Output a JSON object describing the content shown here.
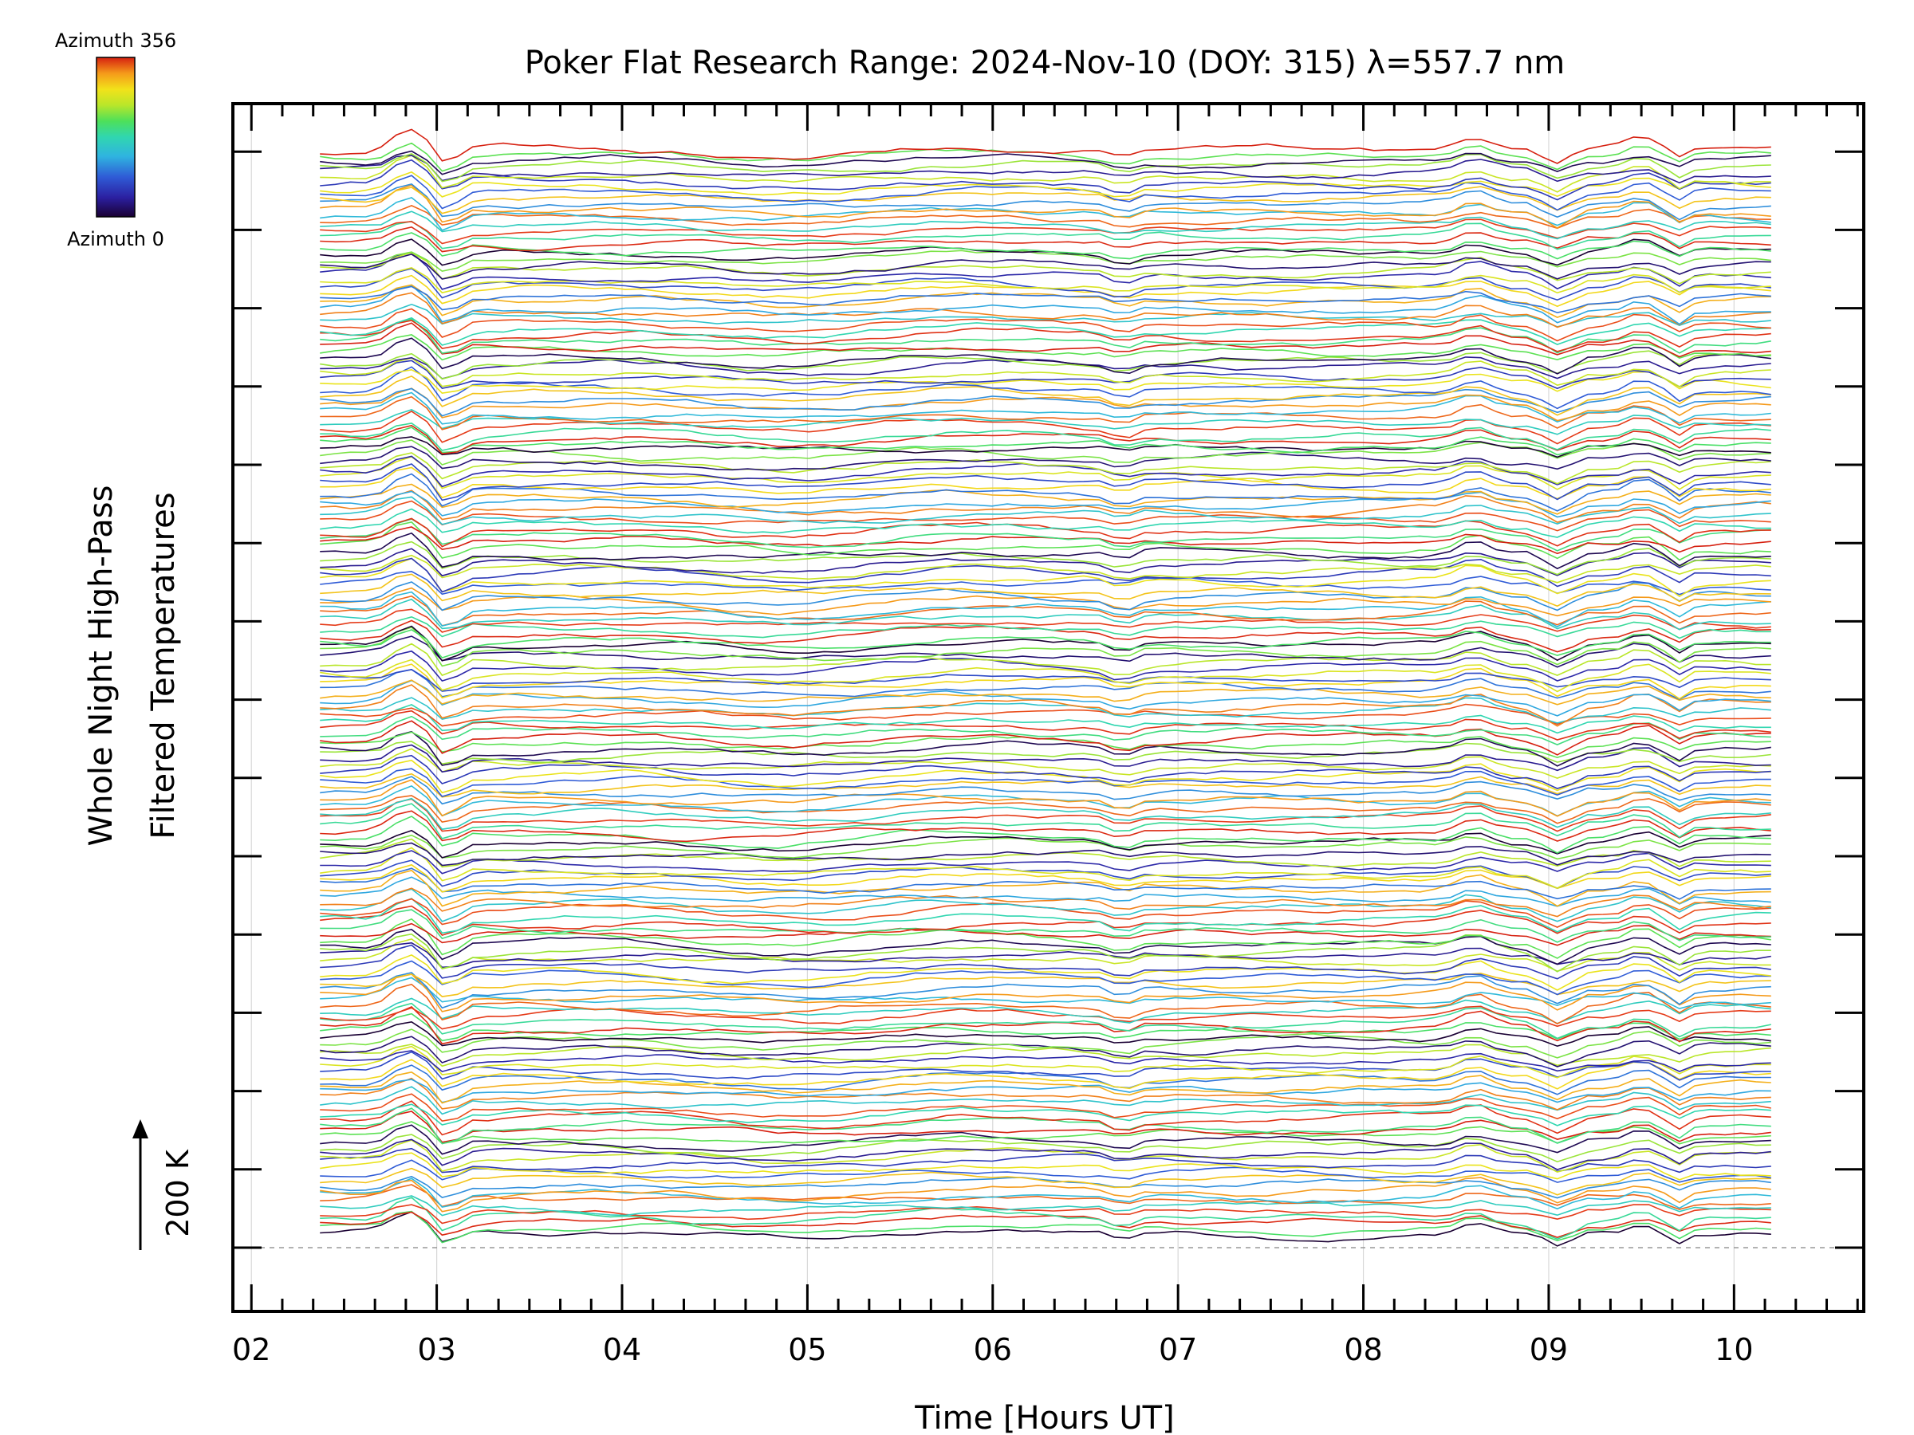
{
  "chart_data": {
    "type": "line",
    "title": "Poker Flat Research Range: 2024-Nov-10 (DOY: 315) λ=557.7 nm",
    "xlabel": "Time [Hours UT]",
    "ylabel_line1": "Whole Night High-Pass",
    "ylabel_line2": "Filtered Temperatures",
    "xlim": [
      1.9,
      10.7
    ],
    "x_ticks": [
      "02",
      "03",
      "04",
      "05",
      "06",
      "07",
      "08",
      "09",
      "10"
    ],
    "x_tick_values": [
      2,
      3,
      4,
      5,
      6,
      7,
      8,
      9,
      10
    ],
    "scale_bar": {
      "label": "200 K",
      "value_k": 200
    },
    "colorbar": {
      "top_label": "Azimuth 356",
      "bottom_label": "Azimuth 0",
      "min": 0,
      "max": 356
    },
    "data_time_range": [
      2.37,
      10.2
    ],
    "series_count": 200,
    "grid": true,
    "colormap": [
      "#1a0033",
      "#2b1fa0",
      "#2f5bd6",
      "#2fb4e0",
      "#30d6b0",
      "#4de05a",
      "#b9e62a",
      "#f2e21a",
      "#f59a1a",
      "#e8401a",
      "#d62010"
    ]
  }
}
